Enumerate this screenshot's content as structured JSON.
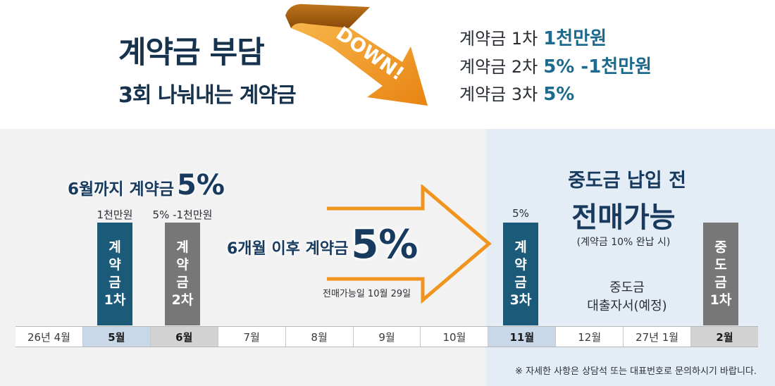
{
  "header": {
    "title": "계약금 부담",
    "subtitle": "3회 나눠내는 계약금",
    "badge": "DOWN!",
    "items": [
      {
        "label": "계약금 1차",
        "value": "1천만원"
      },
      {
        "label": "계약금 2차",
        "value": "5% -1천만원"
      },
      {
        "label": "계약금 3차",
        "value": "5%"
      }
    ]
  },
  "timeline": {
    "until_june_label": "6월까지 계약금",
    "until_june_value": "5%",
    "after_label": "6개월 이후 계약금",
    "after_value": "5%",
    "resale_date": "전매가능일 10월 29일",
    "bars": [
      {
        "top": "1천만원",
        "chars": [
          "계",
          "약",
          "금",
          "1차"
        ],
        "color": "#1b5a78"
      },
      {
        "top": "5% -1천만원",
        "chars": [
          "계",
          "약",
          "금",
          "2차"
        ],
        "color": "#777777"
      },
      {
        "top": "5%",
        "chars": [
          "계",
          "약",
          "금",
          "3차"
        ],
        "color": "#1b5a78"
      },
      {
        "top": "",
        "chars": [
          "중",
          "도",
          "금",
          "1차"
        ],
        "color": "#777777"
      }
    ],
    "right_title1": "중도금 납입 전",
    "right_title2": "전매가능",
    "right_note": "(계약금 10% 완납 시)",
    "loan_line1": "중도금",
    "loan_line2": "대출자서(예정)",
    "months": [
      "26년 4월",
      "5월",
      "6월",
      "7월",
      "8월",
      "9월",
      "10월",
      "11월",
      "12월",
      "27년 1월",
      "2월"
    ],
    "footnote": "※ 자세한 사항은 상담석 또는 대표번호로 문의하시기 바랍니다."
  },
  "colors": {
    "navy": "#173a5e",
    "teal": "#1c6a8e",
    "orange": "#f0941e",
    "bar_blue": "#1b5a78",
    "bar_gray": "#777777"
  }
}
